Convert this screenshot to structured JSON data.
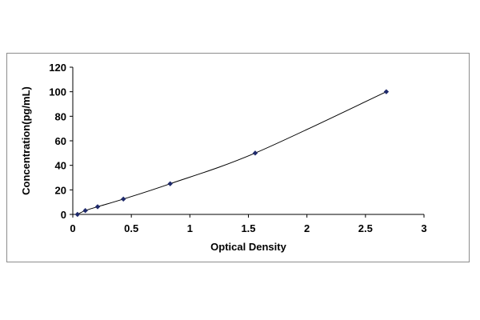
{
  "chart_data": {
    "type": "scatter",
    "title": "",
    "xlabel": "Optical Density",
    "ylabel": "Concentration(pg/mL)",
    "xlim": [
      0,
      3
    ],
    "ylim": [
      0,
      120
    ],
    "x_ticks": [
      "0",
      "0.5",
      "1",
      "1.5",
      "2",
      "2.5",
      "3"
    ],
    "y_ticks": [
      "0",
      "20",
      "40",
      "60",
      "80",
      "100",
      "120"
    ],
    "grid": false,
    "legend": "none",
    "marker_color": "#1f2a6b",
    "line_color": "#000000",
    "fit_line": "smooth",
    "series": [
      {
        "x": [
          0.04,
          0.107,
          0.212,
          0.432,
          0.832,
          1.558,
          2.678
        ],
        "y": [
          0,
          3.12,
          6.25,
          12.5,
          25,
          50,
          100
        ]
      }
    ]
  }
}
